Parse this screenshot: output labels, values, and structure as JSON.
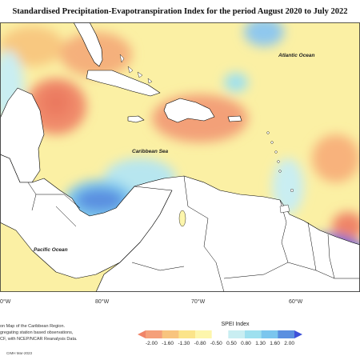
{
  "title": "Standardised Precipitation-Evapotranspiration Index for the period August 2020 to July 2022",
  "labels": {
    "atlantic": "Atlantic Ocean",
    "caribbean": "Caribbean Sea",
    "pacific": "Pacific Ocean"
  },
  "longitude_ticks": [
    "0°W",
    "80°W",
    "70°W",
    "60°W"
  ],
  "notes": [
    "on Map of the Caribbean Region.",
    "gregating station based observations,",
    "CF, with NCEP/NCAR Reanalysis Data."
  ],
  "credit": "CIMH Mar-2023",
  "legend": {
    "title": "SPEI Index",
    "values": [
      "-2.00",
      "-1.60",
      "-1.30",
      "-0.80",
      "-0.50",
      "0.50",
      "0.80",
      "1.30",
      "1.60",
      "2.00"
    ],
    "colors": [
      "#f08468",
      "#f5a07a",
      "#f8c47e",
      "#fbe48a",
      "#fdf6ac",
      "#ffffff",
      "#c9eef2",
      "#9ee0ef",
      "#7bc6ee",
      "#5a8fe0",
      "#3e50d8"
    ]
  },
  "colors": {
    "ocean_base": "#fbf0a4",
    "land": "#ffffff",
    "border": "#000000"
  }
}
